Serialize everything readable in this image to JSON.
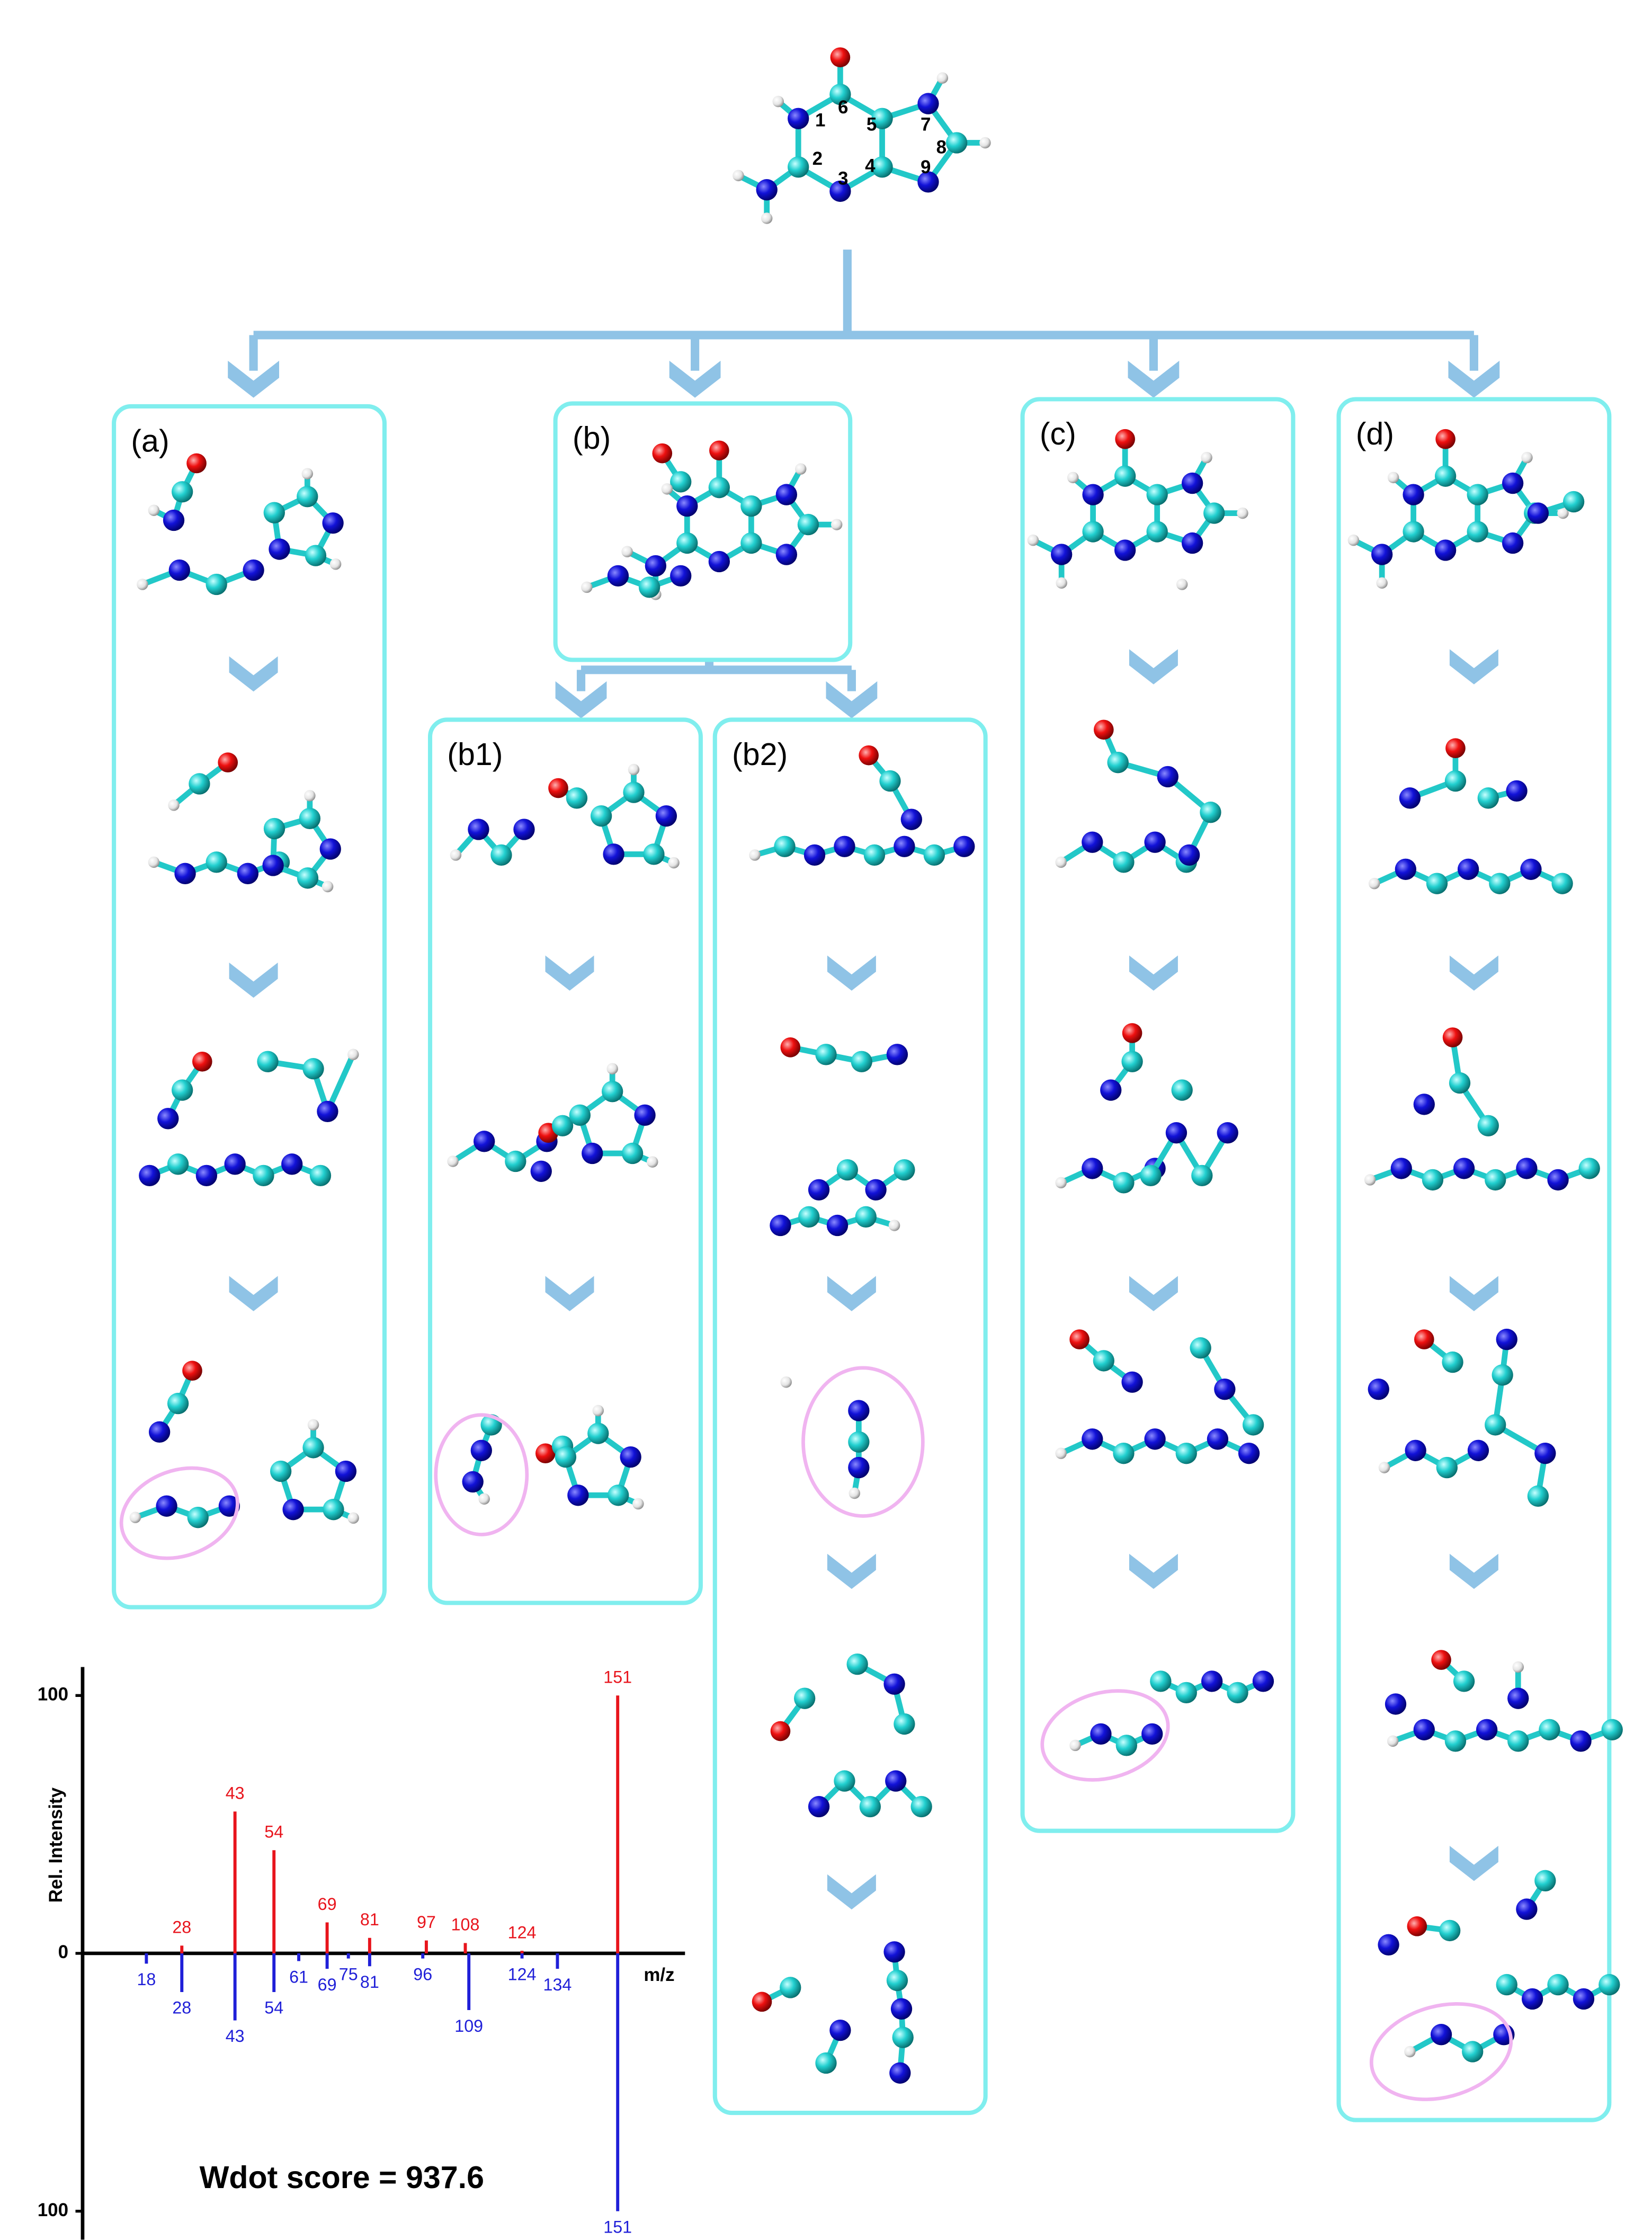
{
  "figure": {
    "atom_numbers": [
      "1",
      "2",
      "3",
      "4",
      "5",
      "6",
      "7",
      "8",
      "9"
    ],
    "panels": [
      "(a)",
      "(b)",
      "(b1)",
      "(b2)",
      "(c)",
      "(d)"
    ]
  },
  "chart_data": {
    "type": "mirror_stem",
    "ylabel": "Rel. Intensity",
    "xlabel": "m/z",
    "annotation": "Wdot score = 937.6",
    "xlim": [
      0,
      170
    ],
    "ylim": [
      -100,
      100
    ],
    "yticks": [
      100,
      0,
      {
        "value": -100,
        "label": "100"
      }
    ],
    "series": [
      {
        "color": "#e8141c",
        "x": [
          28,
          43,
          54,
          69,
          81,
          97,
          108,
          124,
          151
        ],
        "values": [
          3,
          55,
          40,
          12,
          6,
          5,
          4,
          1,
          100
        ]
      },
      {
        "color": "#1f1fd8",
        "x": [
          18,
          28,
          43,
          54,
          61,
          69,
          75,
          81,
          96,
          109,
          124,
          134,
          151
        ],
        "values": [
          -4,
          -15,
          -26,
          -15,
          -3,
          -6,
          -2,
          -5,
          -2,
          -22,
          -2,
          -6,
          -100
        ]
      }
    ]
  }
}
